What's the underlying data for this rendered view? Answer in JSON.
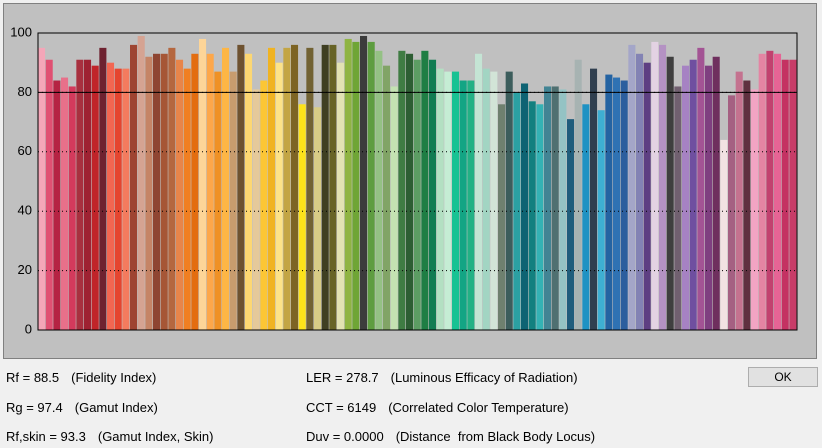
{
  "chart_data": {
    "type": "bar",
    "values": [
      95,
      91,
      84,
      85,
      82,
      91,
      91,
      89,
      95,
      90,
      88,
      88,
      96,
      99,
      92,
      93,
      93,
      95,
      91,
      88,
      93,
      98,
      93,
      87,
      95,
      87,
      96,
      93,
      81,
      84,
      95,
      90,
      95,
      96,
      76,
      95,
      75,
      96,
      96,
      90,
      98,
      97,
      99,
      97,
      94,
      89,
      82,
      94,
      93,
      91,
      94,
      91,
      88,
      87,
      87,
      84,
      84,
      93,
      88,
      87,
      76,
      87,
      80,
      83,
      77,
      76,
      82,
      82,
      81,
      71,
      91,
      76,
      88,
      74,
      86,
      85,
      84,
      96,
      93,
      90,
      97,
      96,
      92,
      82,
      89,
      91,
      95,
      89,
      92,
      64,
      79,
      87,
      84,
      81,
      93,
      94,
      93,
      91,
      91
    ],
    "colors": [
      "#f4a6b8",
      "#e05072",
      "#b52343",
      "#e8708a",
      "#d33a5c",
      "#a8303f",
      "#9e2232",
      "#c02429",
      "#6e2230",
      "#f26651",
      "#e5452f",
      "#f47b5e",
      "#9e4431",
      "#d5a392",
      "#c58466",
      "#8e4532",
      "#a65636",
      "#b5673f",
      "#e8854a",
      "#f07f22",
      "#e36d10",
      "#fdd598",
      "#fda74a",
      "#ef9125",
      "#fdb645",
      "#c89c6e",
      "#6e5230",
      "#fdd772",
      "#e5c99a",
      "#fcc635",
      "#f0b322",
      "#fde388",
      "#c3a544",
      "#7d6424",
      "#fde31a",
      "#726233",
      "#d8cc86",
      "#3f3f22",
      "#676326",
      "#e2e2b3",
      "#8fb443",
      "#6fa535",
      "#3c3c3c",
      "#5e9d40",
      "#94c184",
      "#81a466",
      "#c4e2b2",
      "#3f7c43",
      "#2d5e33",
      "#5c9d63",
      "#1e7e44",
      "#117c52",
      "#b3e0c2",
      "#c5edd4",
      "#17c293",
      "#13a584",
      "#22b185",
      "#c4e4d4",
      "#a2d5c3",
      "#d2e4d7",
      "#6f806f",
      "#3c5d5c",
      "#2ba0a2",
      "#0e6373",
      "#12807f",
      "#34b2b4",
      "#428494",
      "#4f7071",
      "#94c3c4",
      "#1f5d7c",
      "#a7b3b2",
      "#1f92c3",
      "#303f4f",
      "#3eafd2",
      "#2463a2",
      "#2f72b3",
      "#2c5e9e",
      "#a4a6c8",
      "#8383b4",
      "#5e3f82",
      "#e3d2e3",
      "#b492c3",
      "#3f3f3f",
      "#716070",
      "#a682c3",
      "#6f4fa0",
      "#a35394",
      "#7f3f80",
      "#6f2f5e",
      "#f2e2e2",
      "#a56082",
      "#c4728f",
      "#5f3040",
      "#f2a4c3",
      "#e484a3",
      "#c2416f",
      "#e66495",
      "#c43262",
      "#c83c68"
    ],
    "ylim": [
      0,
      100
    ],
    "yticks": [
      0,
      20,
      40,
      60,
      80,
      100
    ],
    "grid": true,
    "reference_line": 80
  },
  "metrics": [
    {
      "label": "Rf = 88.5",
      "description": "(Fidelity Index)"
    },
    {
      "label": "Rg = 97.4",
      "description": "(Gamut Index)"
    },
    {
      "label": "Rf,skin = 93.3",
      "description": "(Gamut Index, Skin)"
    },
    {
      "label": "LER = 278.7",
      "description": "(Luminous Efficacy of Radiation)"
    },
    {
      "label": "CCT = 6149",
      "description": "(Correlated Color Temperature)"
    },
    {
      "label": "Duv = 0.0000",
      "description": "(Distance  from Black Body Locus)"
    }
  ],
  "button": "OK"
}
